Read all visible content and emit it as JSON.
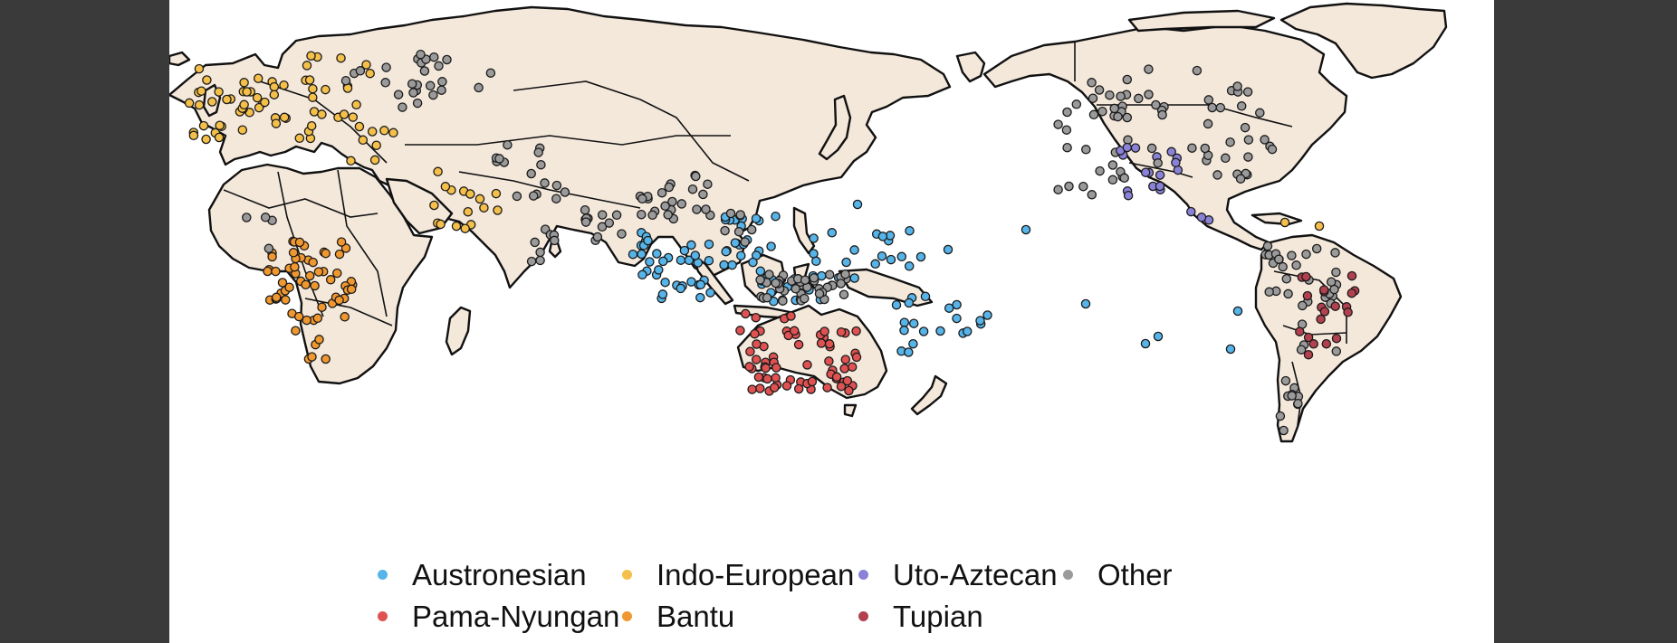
{
  "legend": {
    "austronesian": "Austronesian",
    "indo_european": "Indo-European",
    "uto_aztecan": "Uto-Aztecan",
    "other": "Other",
    "pama_nyungan": "Pama-Nyungan",
    "bantu": "Bantu",
    "tupian": "Tupian"
  },
  "colors": {
    "land": "#f4e8db",
    "Austronesian": "#56b4e9",
    "Indo-European": "#f5c04a",
    "Uto-Aztecan": "#8a82d6",
    "Other": "#9a9a9a",
    "Pama-Nyungan": "#e05252",
    "Bantu": "#f0982f",
    "Tupian": "#b2414f"
  },
  "map": {
    "projection": "Pacific-centered world map (central meridian ~150°E)",
    "families": [
      "Austronesian",
      "Indo-European",
      "Uto-Aztecan",
      "Other",
      "Pama-Nyungan",
      "Bantu",
      "Tupian"
    ]
  }
}
